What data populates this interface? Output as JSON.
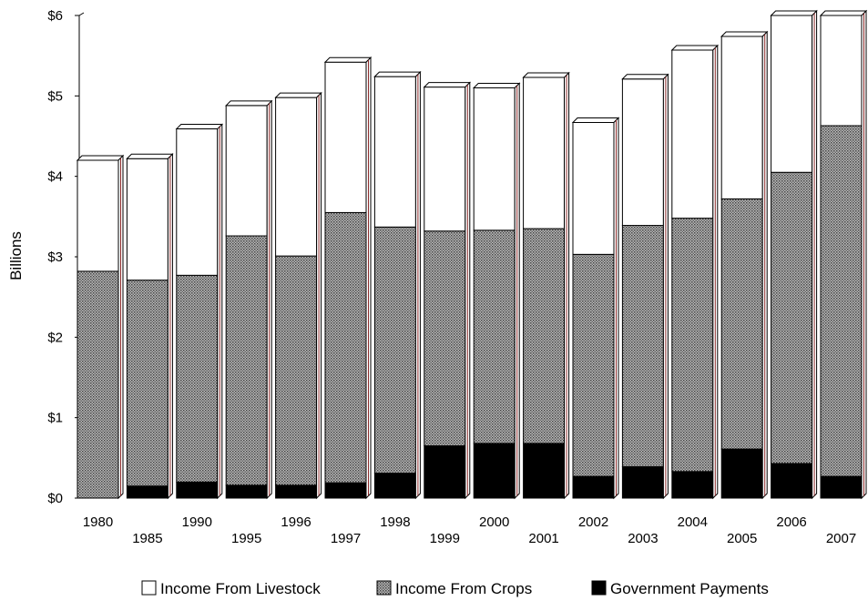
{
  "chart_data": {
    "type": "bar",
    "stacked": true,
    "three_d": true,
    "ylabel": "Billions",
    "ylim": [
      0,
      6
    ],
    "yticks": [
      "$0",
      "$1",
      "$2",
      "$3",
      "$4",
      "$5",
      "$6"
    ],
    "categories": [
      "1980",
      "1985",
      "1990",
      "1995",
      "1996",
      "1997",
      "1998",
      "1999",
      "2000",
      "2001",
      "2002",
      "2003",
      "2004",
      "2005",
      "2006",
      "2007"
    ],
    "series": [
      {
        "name": "Government Payments",
        "color": "#000000",
        "values": [
          0.0,
          0.15,
          0.2,
          0.16,
          0.16,
          0.19,
          0.31,
          0.65,
          0.68,
          0.68,
          0.27,
          0.39,
          0.33,
          0.61,
          0.43,
          0.27
        ]
      },
      {
        "name": "Income From Crops",
        "color": "#9a9a9a",
        "pattern": "dotted",
        "values": [
          2.82,
          2.56,
          2.57,
          3.1,
          2.85,
          3.36,
          3.06,
          2.67,
          2.65,
          2.67,
          2.76,
          3.0,
          3.15,
          3.11,
          3.62,
          4.36
        ]
      },
      {
        "name": "Income From Livestock",
        "color": "#ffffff",
        "values": [
          1.38,
          1.51,
          1.82,
          1.62,
          1.97,
          1.87,
          1.87,
          1.79,
          1.77,
          1.88,
          1.64,
          1.82,
          2.09,
          2.02,
          1.95,
          1.37
        ]
      }
    ],
    "legend": {
      "position": "bottom",
      "items": [
        "Income From Livestock",
        "Income From Crops",
        "Government Payments"
      ]
    }
  }
}
